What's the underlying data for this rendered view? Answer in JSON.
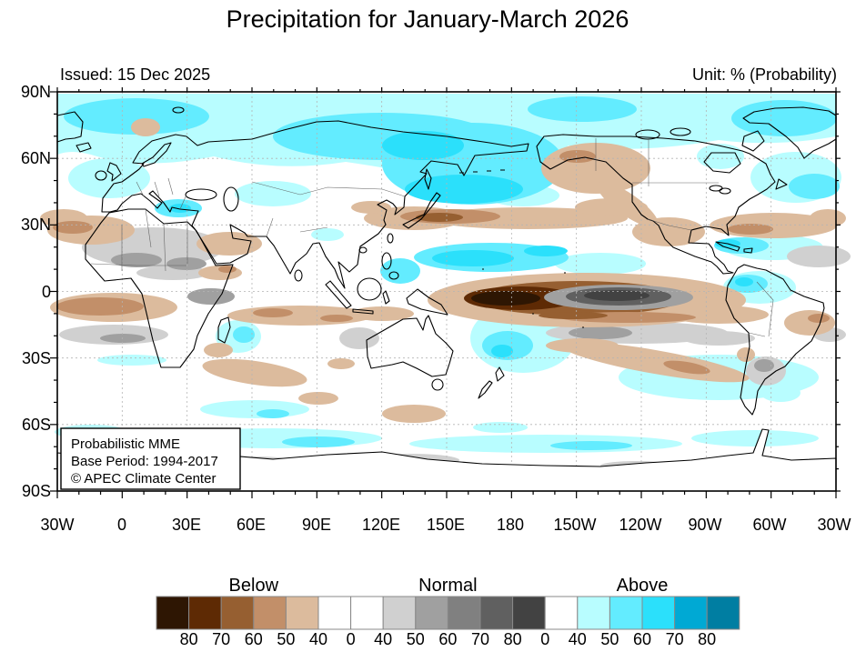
{
  "title": "Precipitation for January-March 2026",
  "issued": "Issued: 15 Dec 2025",
  "unit": "Unit: % (Probability)",
  "map": {
    "lat_labels": [
      "90N",
      "60N",
      "30N",
      "0",
      "30S",
      "60S",
      "90S"
    ],
    "lon_labels": [
      "30W",
      "0",
      "30E",
      "60E",
      "90E",
      "120E",
      "150E",
      "180",
      "150W",
      "120W",
      "90W",
      "60W",
      "30W"
    ],
    "inset": {
      "line1": "Probabilistic MME",
      "line2": "Base Period: 1994-2017",
      "line3": "© APEC Climate Center"
    }
  },
  "legend": {
    "groups": [
      "Below",
      "Normal",
      "Above"
    ],
    "ticks": [
      "80",
      "70",
      "60",
      "50",
      "40",
      "0",
      "40",
      "50",
      "60",
      "70",
      "80",
      "0",
      "40",
      "50",
      "60",
      "70",
      "80"
    ],
    "colors": [
      "#2e1603",
      "#5e2a04",
      "#965f31",
      "#c28f69",
      "#dcbb9d",
      "#ffffff",
      "#ffffff",
      "#d0d0d0",
      "#a0a0a0",
      "#808080",
      "#606060",
      "#424242",
      "#ffffff",
      "#b8fdff",
      "#63ecff",
      "#2be0fb",
      "#00a9d4",
      "#007ea2"
    ]
  },
  "colors": {
    "coastline": "#000000",
    "gridline": "#b4b4b4",
    "frame": "#000000"
  }
}
